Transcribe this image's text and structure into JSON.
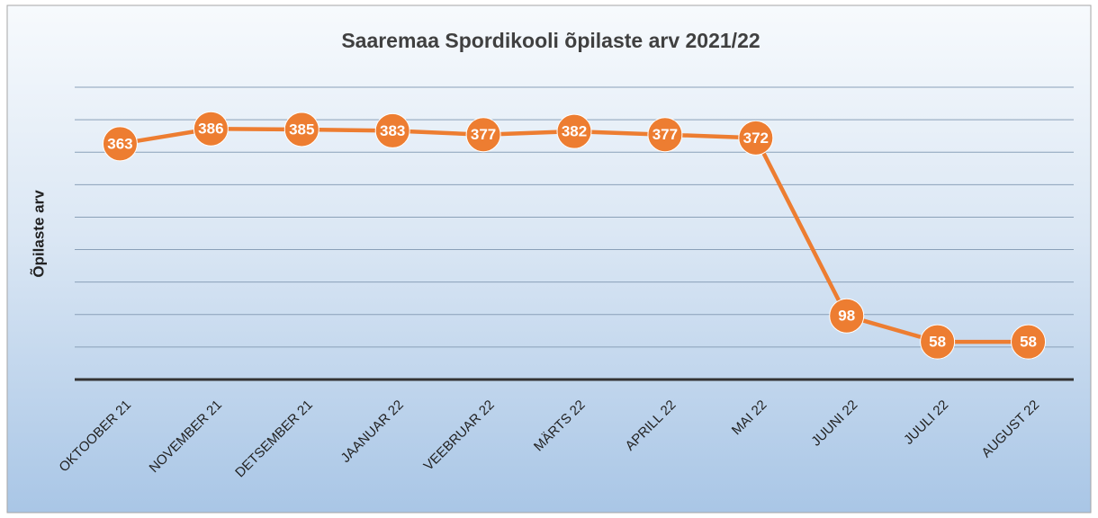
{
  "chart_data": {
    "type": "line",
    "title": "Saaremaa Spordikooli õpilaste arv 2021/22",
    "y_label": "Õpilaste arv",
    "categories": [
      "OKTOOBER 21",
      "NOVEMBER 21",
      "DETSEMBER 21",
      "JAANUAR 22",
      "VEEBRUAR 22",
      "MÄRTS 22",
      "APRILL 22",
      "MAI 22",
      "JUUNI 22",
      "JUULI 22",
      "AUGUST 22"
    ],
    "values": [
      363,
      386,
      385,
      383,
      377,
      382,
      377,
      372,
      98,
      58,
      58
    ],
    "color": "#ed7d31",
    "ylim": [
      0,
      450
    ],
    "yticks": [
      50,
      100,
      150,
      200,
      250,
      300,
      350,
      400,
      450
    ],
    "grid": true
  }
}
